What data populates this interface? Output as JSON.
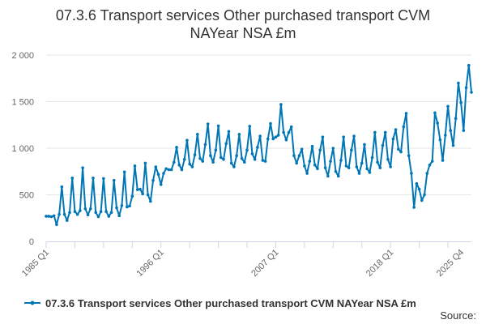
{
  "chart_data": {
    "type": "line",
    "title_lines": [
      "07.3.6 Transport services Other purchased transport CVM",
      "NAYear NSA £m"
    ],
    "xlabel": "",
    "ylabel": "",
    "ylim": [
      0,
      2000
    ],
    "y_ticks": [
      0,
      500,
      1000,
      1500,
      2000
    ],
    "y_tick_labels": [
      "0",
      "500",
      "1 000",
      "1 500",
      "2 000"
    ],
    "x_ticks": [
      {
        "index": 0,
        "label": "1985 Q1"
      },
      {
        "index": 44,
        "label": "1996 Q1"
      },
      {
        "index": 88,
        "label": "2007 Q1"
      },
      {
        "index": 132,
        "label": "2018 Q1"
      },
      {
        "index": 159,
        "label": "2025 Q4"
      }
    ],
    "grid": true,
    "legend_position": "bottom",
    "series": [
      {
        "name": "07.3.6 Transport services Other purchased transport CVM NAYear NSA £m",
        "color": "#0076b6",
        "values": [
          270,
          270,
          265,
          275,
          180,
          290,
          585,
          290,
          225,
          310,
          680,
          320,
          290,
          330,
          790,
          350,
          285,
          350,
          680,
          310,
          265,
          320,
          675,
          320,
          270,
          310,
          655,
          360,
          275,
          385,
          745,
          370,
          380,
          485,
          810,
          555,
          560,
          510,
          840,
          500,
          430,
          655,
          800,
          720,
          610,
          730,
          780,
          770,
          770,
          850,
          1010,
          820,
          770,
          880,
          1085,
          830,
          800,
          930,
          1150,
          890,
          860,
          1040,
          1260,
          920,
          850,
          980,
          1240,
          900,
          880,
          1050,
          1180,
          840,
          800,
          920,
          1150,
          890,
          850,
          980,
          1235,
          940,
          880,
          1010,
          1130,
          870,
          860,
          1100,
          1265,
          1100,
          1120,
          1140,
          1470,
          1170,
          1090,
          1170,
          1230,
          920,
          840,
          920,
          990,
          810,
          730,
          860,
          1020,
          820,
          780,
          980,
          1120,
          790,
          700,
          860,
          1000,
          750,
          700,
          870,
          1120,
          810,
          790,
          980,
          1130,
          800,
          730,
          840,
          1040,
          780,
          740,
          900,
          1170,
          850,
          790,
          1030,
          1170,
          880,
          800,
          1100,
          1200,
          990,
          960,
          1230,
          1375,
          920,
          730,
          365,
          620,
          560,
          440,
          500,
          730,
          820,
          860,
          1380,
          1270,
          1090,
          870,
          1140,
          1450,
          1190,
          1030,
          1320,
          1700,
          1490,
          1190,
          1650,
          1890,
          1600
        ]
      }
    ],
    "source_label": "Source:"
  }
}
